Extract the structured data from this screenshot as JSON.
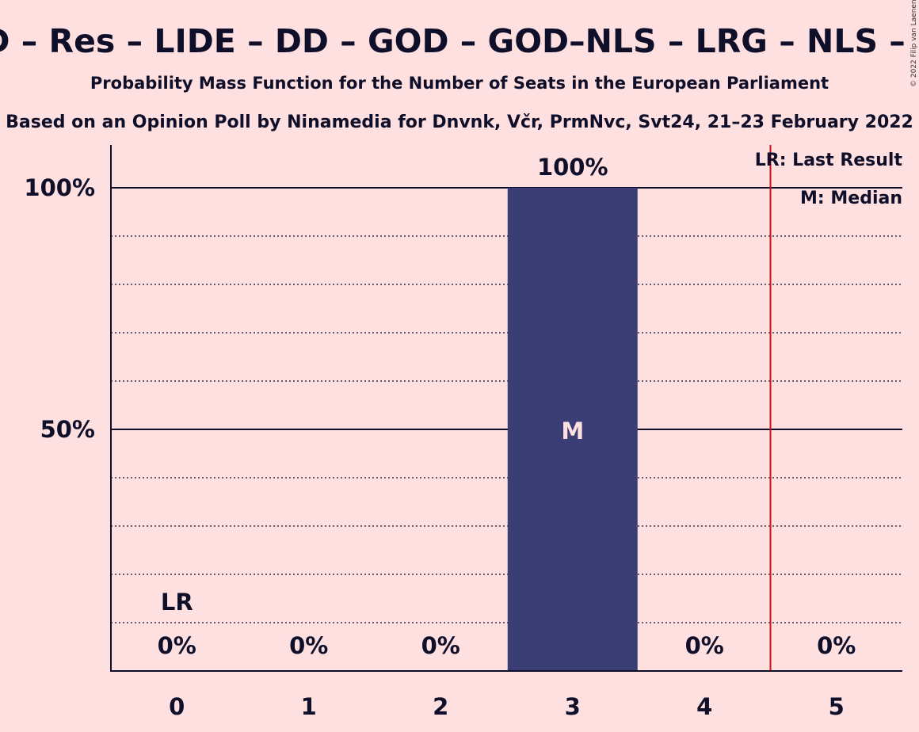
{
  "colors": {
    "background": "#FFE0E0",
    "bar": "#3A3E75",
    "text": "#0F0F2A",
    "last_result_line": "#CC1111"
  },
  "chart_data": {
    "type": "bar",
    "title": "SD – Res – LIDE – DD – GOD – GOD–NLS – LRG – NLS – D",
    "subtitle": "Probability Mass Function for the Number of Seats in the European Parliament",
    "subtitle2": "Based on an Opinion Poll by Ninamedia for Dnvnk, Včr, PrmNvc, Svt24, 21–23 February 2022",
    "credit": "© 2022 Filip van Laenen",
    "categories": [
      "0",
      "1",
      "2",
      "3",
      "4",
      "5"
    ],
    "values": [
      0,
      0,
      0,
      100,
      0,
      0
    ],
    "value_labels": [
      "0%",
      "0%",
      "0%",
      "100%",
      "0%",
      "0%"
    ],
    "ylim": [
      0,
      100
    ],
    "yticks": [
      {
        "value": 50,
        "label": "50%"
      },
      {
        "value": 100,
        "label": "100%"
      }
    ],
    "minor_grid": [
      10,
      20,
      30,
      40,
      60,
      70,
      80,
      90
    ],
    "last_result": {
      "seats": 0,
      "label": "LR",
      "line_at": 4.5
    },
    "median": {
      "seats": 3,
      "label": "M"
    },
    "legend": {
      "position": "top-right",
      "items": [
        "LR: Last Result",
        "M: Median"
      ]
    }
  }
}
